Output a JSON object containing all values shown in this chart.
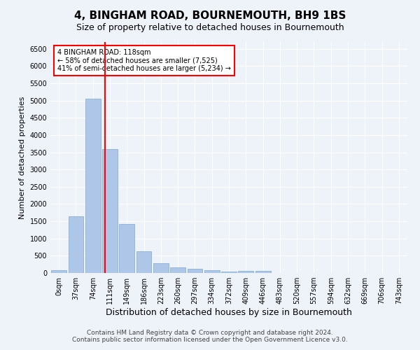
{
  "title": "4, BINGHAM ROAD, BOURNEMOUTH, BH9 1BS",
  "subtitle": "Size of property relative to detached houses in Bournemouth",
  "xlabel": "Distribution of detached houses by size in Bournemouth",
  "ylabel": "Number of detached properties",
  "footer_line1": "Contains HM Land Registry data © Crown copyright and database right 2024.",
  "footer_line2": "Contains public sector information licensed under the Open Government Licence v3.0.",
  "bar_labels": [
    "0sqm",
    "37sqm",
    "74sqm",
    "111sqm",
    "149sqm",
    "186sqm",
    "223sqm",
    "260sqm",
    "297sqm",
    "334sqm",
    "372sqm",
    "409sqm",
    "446sqm",
    "483sqm",
    "520sqm",
    "557sqm",
    "594sqm",
    "632sqm",
    "669sqm",
    "706sqm",
    "743sqm"
  ],
  "bar_values": [
    75,
    1650,
    5050,
    3600,
    1420,
    620,
    290,
    155,
    115,
    75,
    50,
    55,
    60,
    0,
    0,
    0,
    0,
    0,
    0,
    0,
    0
  ],
  "bar_color": "#aec6e8",
  "bar_edge_color": "#7aaad0",
  "annotation_text": "4 BINGHAM ROAD: 118sqm\n← 58% of detached houses are smaller (7,525)\n41% of semi-detached houses are larger (5,234) →",
  "annotation_box_color": "white",
  "annotation_box_edge_color": "red",
  "vline_color": "red",
  "ylim": [
    0,
    6700
  ],
  "yticks": [
    0,
    500,
    1000,
    1500,
    2000,
    2500,
    3000,
    3500,
    4000,
    4500,
    5000,
    5500,
    6000,
    6500
  ],
  "background_color": "#eef2f9",
  "grid_color": "white",
  "title_fontsize": 11,
  "subtitle_fontsize": 9,
  "xlabel_fontsize": 9,
  "ylabel_fontsize": 8,
  "tick_fontsize": 7,
  "annotation_fontsize": 7,
  "footer_fontsize": 6.5
}
